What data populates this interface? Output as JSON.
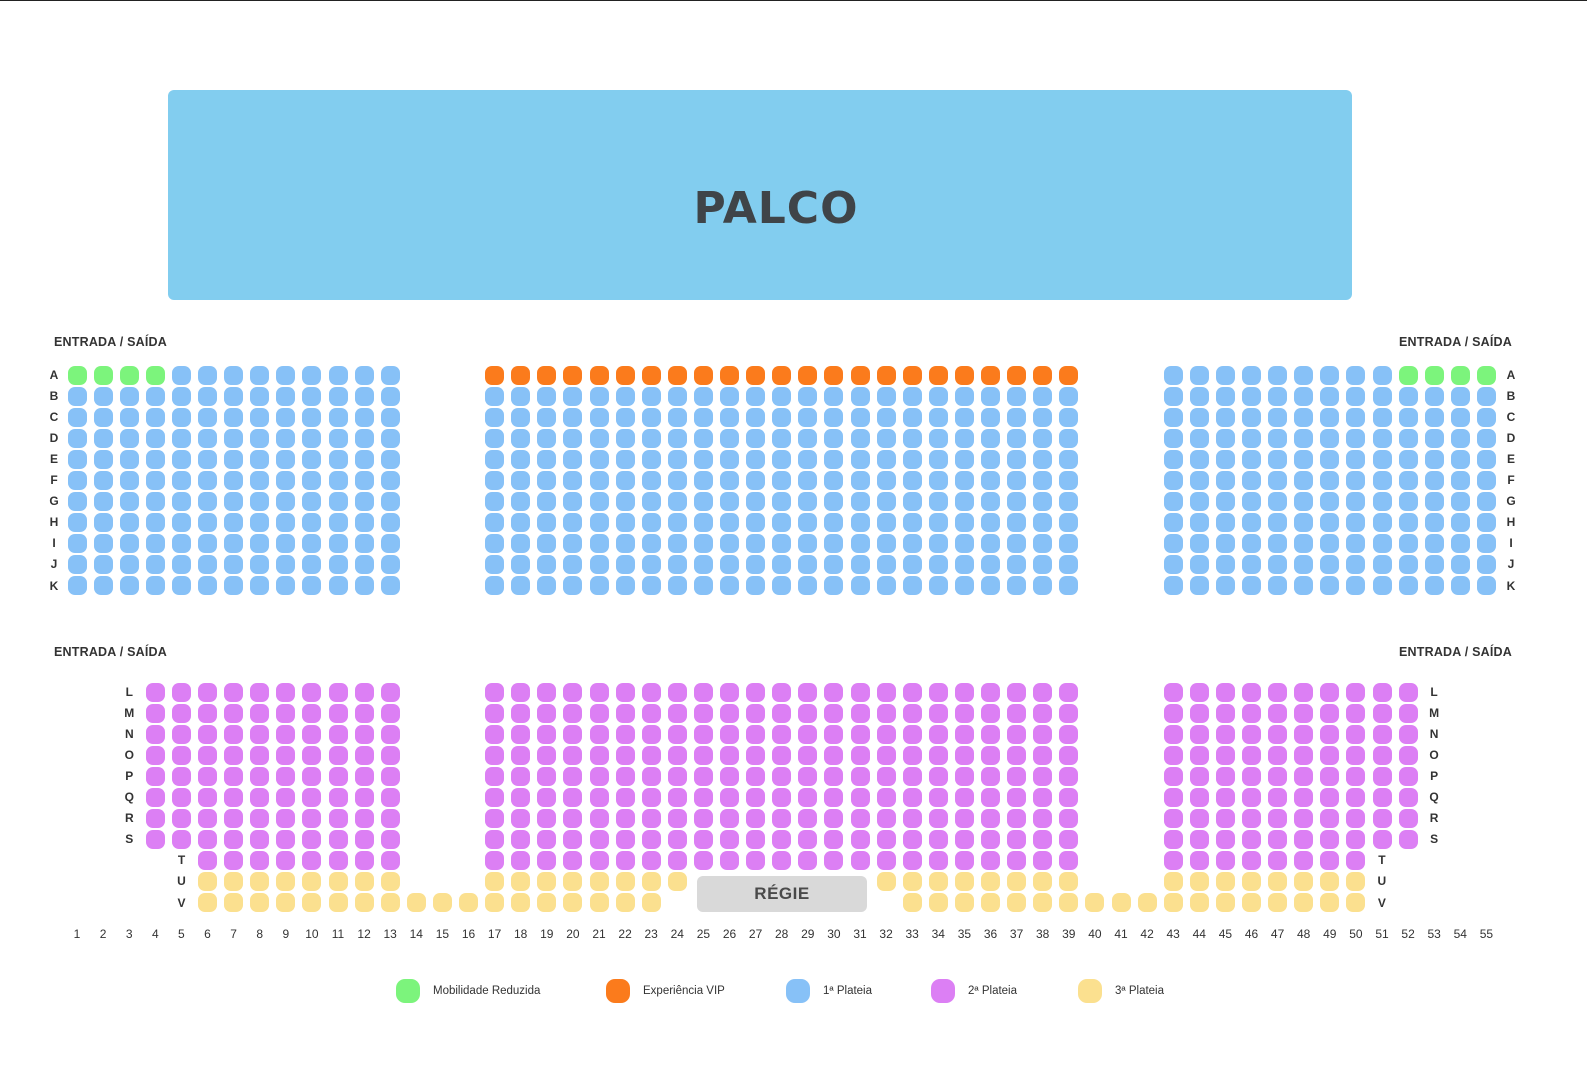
{
  "stage": {
    "label": "PALCO"
  },
  "exits": {
    "upper_left": "ENTRADA / SAÍDA",
    "upper_right": "ENTRADA / SAÍDA",
    "lower_left": "ENTRADA / SAÍDA",
    "lower_right": "ENTRADA / SAÍDA"
  },
  "regie": {
    "label": "RÉGIE"
  },
  "colors": {
    "mobility": "#7cf47c",
    "vip": "#fb7b1c",
    "plateia1": "#87c1f7",
    "plateia2": "#dc7ff4",
    "plateia3": "#fbe08f"
  },
  "legend": [
    {
      "key": "mobility",
      "label": "Mobilidade Reduzida"
    },
    {
      "key": "vip",
      "label": "Experiência VIP"
    },
    {
      "key": "plateia1",
      "label": "1ª Plateia"
    },
    {
      "key": "plateia2",
      "label": "2ª Plateia"
    },
    {
      "key": "plateia3",
      "label": "3ª Plateia"
    }
  ],
  "seat_columns": [
    "1",
    "2",
    "3",
    "4",
    "5",
    "6",
    "7",
    "8",
    "9",
    "10",
    "11",
    "12",
    "13",
    "14",
    "15",
    "16",
    "17",
    "18",
    "19",
    "20",
    "21",
    "22",
    "23",
    "24",
    "25",
    "26",
    "27",
    "28",
    "29",
    "30",
    "31",
    "32",
    "33",
    "34",
    "35",
    "36",
    "37",
    "38",
    "39",
    "40",
    "41",
    "42",
    "43",
    "44",
    "45",
    "46",
    "47",
    "48",
    "49",
    "50",
    "51",
    "52",
    "53",
    "54",
    "55"
  ],
  "seating": {
    "rows": [
      {
        "row": "A",
        "seats": [
          {
            "cols": [
              1,
              4
            ],
            "cat": "mobility"
          },
          {
            "cols": [
              5,
              13
            ],
            "cat": "plateia1"
          },
          {
            "cols": [
              17,
              39
            ],
            "cat": "vip"
          },
          {
            "cols": [
              43,
              51
            ],
            "cat": "plateia1"
          },
          {
            "cols": [
              52,
              55
            ],
            "cat": "mobility"
          }
        ]
      },
      {
        "row": "B",
        "seats": [
          {
            "cols": [
              1,
              13
            ],
            "cat": "plateia1"
          },
          {
            "cols": [
              17,
              39
            ],
            "cat": "plateia1"
          },
          {
            "cols": [
              43,
              55
            ],
            "cat": "plateia1"
          }
        ]
      },
      {
        "row": "C",
        "seats": [
          {
            "cols": [
              1,
              13
            ],
            "cat": "plateia1"
          },
          {
            "cols": [
              17,
              39
            ],
            "cat": "plateia1"
          },
          {
            "cols": [
              43,
              55
            ],
            "cat": "plateia1"
          }
        ]
      },
      {
        "row": "D",
        "seats": [
          {
            "cols": [
              1,
              13
            ],
            "cat": "plateia1"
          },
          {
            "cols": [
              17,
              39
            ],
            "cat": "plateia1"
          },
          {
            "cols": [
              43,
              55
            ],
            "cat": "plateia1"
          }
        ]
      },
      {
        "row": "E",
        "seats": [
          {
            "cols": [
              1,
              13
            ],
            "cat": "plateia1"
          },
          {
            "cols": [
              17,
              39
            ],
            "cat": "plateia1"
          },
          {
            "cols": [
              43,
              55
            ],
            "cat": "plateia1"
          }
        ]
      },
      {
        "row": "F",
        "seats": [
          {
            "cols": [
              1,
              13
            ],
            "cat": "plateia1"
          },
          {
            "cols": [
              17,
              39
            ],
            "cat": "plateia1"
          },
          {
            "cols": [
              43,
              55
            ],
            "cat": "plateia1"
          }
        ]
      },
      {
        "row": "G",
        "seats": [
          {
            "cols": [
              1,
              13
            ],
            "cat": "plateia1"
          },
          {
            "cols": [
              17,
              39
            ],
            "cat": "plateia1"
          },
          {
            "cols": [
              43,
              55
            ],
            "cat": "plateia1"
          }
        ]
      },
      {
        "row": "H",
        "seats": [
          {
            "cols": [
              1,
              13
            ],
            "cat": "plateia1"
          },
          {
            "cols": [
              17,
              39
            ],
            "cat": "plateia1"
          },
          {
            "cols": [
              43,
              55
            ],
            "cat": "plateia1"
          }
        ]
      },
      {
        "row": "I",
        "seats": [
          {
            "cols": [
              1,
              13
            ],
            "cat": "plateia1"
          },
          {
            "cols": [
              17,
              39
            ],
            "cat": "plateia1"
          },
          {
            "cols": [
              43,
              55
            ],
            "cat": "plateia1"
          }
        ]
      },
      {
        "row": "J",
        "seats": [
          {
            "cols": [
              1,
              13
            ],
            "cat": "plateia1"
          },
          {
            "cols": [
              17,
              39
            ],
            "cat": "plateia1"
          },
          {
            "cols": [
              43,
              55
            ],
            "cat": "plateia1"
          }
        ]
      },
      {
        "row": "K",
        "seats": [
          {
            "cols": [
              1,
              13
            ],
            "cat": "plateia1"
          },
          {
            "cols": [
              17,
              39
            ],
            "cat": "plateia1"
          },
          {
            "cols": [
              43,
              55
            ],
            "cat": "plateia1"
          }
        ]
      },
      {
        "row": "L",
        "seats": [
          {
            "cols": [
              4,
              13
            ],
            "cat": "plateia2"
          },
          {
            "cols": [
              17,
              39
            ],
            "cat": "plateia2"
          },
          {
            "cols": [
              43,
              52
            ],
            "cat": "plateia2"
          }
        ]
      },
      {
        "row": "M",
        "seats": [
          {
            "cols": [
              4,
              13
            ],
            "cat": "plateia2"
          },
          {
            "cols": [
              17,
              39
            ],
            "cat": "plateia2"
          },
          {
            "cols": [
              43,
              52
            ],
            "cat": "plateia2"
          }
        ]
      },
      {
        "row": "N",
        "seats": [
          {
            "cols": [
              4,
              13
            ],
            "cat": "plateia2"
          },
          {
            "cols": [
              17,
              39
            ],
            "cat": "plateia2"
          },
          {
            "cols": [
              43,
              52
            ],
            "cat": "plateia2"
          }
        ]
      },
      {
        "row": "O",
        "seats": [
          {
            "cols": [
              4,
              13
            ],
            "cat": "plateia2"
          },
          {
            "cols": [
              17,
              39
            ],
            "cat": "plateia2"
          },
          {
            "cols": [
              43,
              52
            ],
            "cat": "plateia2"
          }
        ]
      },
      {
        "row": "P",
        "seats": [
          {
            "cols": [
              4,
              13
            ],
            "cat": "plateia2"
          },
          {
            "cols": [
              17,
              39
            ],
            "cat": "plateia2"
          },
          {
            "cols": [
              43,
              52
            ],
            "cat": "plateia2"
          }
        ]
      },
      {
        "row": "Q",
        "seats": [
          {
            "cols": [
              4,
              13
            ],
            "cat": "plateia2"
          },
          {
            "cols": [
              17,
              39
            ],
            "cat": "plateia2"
          },
          {
            "cols": [
              43,
              52
            ],
            "cat": "plateia2"
          }
        ]
      },
      {
        "row": "R",
        "seats": [
          {
            "cols": [
              4,
              13
            ],
            "cat": "plateia2"
          },
          {
            "cols": [
              17,
              39
            ],
            "cat": "plateia2"
          },
          {
            "cols": [
              43,
              52
            ],
            "cat": "plateia2"
          }
        ]
      },
      {
        "row": "S",
        "seats": [
          {
            "cols": [
              4,
              13
            ],
            "cat": "plateia2"
          },
          {
            "cols": [
              17,
              39
            ],
            "cat": "plateia2"
          },
          {
            "cols": [
              43,
              52
            ],
            "cat": "plateia2"
          }
        ]
      },
      {
        "row": "T",
        "seats": [
          {
            "cols": [
              6,
              13
            ],
            "cat": "plateia2"
          },
          {
            "cols": [
              17,
              39
            ],
            "cat": "plateia2"
          },
          {
            "cols": [
              43,
              50
            ],
            "cat": "plateia2"
          }
        ]
      },
      {
        "row": "U",
        "seats": [
          {
            "cols": [
              6,
              13
            ],
            "cat": "plateia3"
          },
          {
            "cols": [
              17,
              24
            ],
            "cat": "plateia3"
          },
          {
            "cols": [
              32,
              39
            ],
            "cat": "plateia3"
          },
          {
            "cols": [
              43,
              50
            ],
            "cat": "plateia3"
          }
        ]
      },
      {
        "row": "V",
        "seats": [
          {
            "cols": [
              6,
              23
            ],
            "cat": "plateia3"
          },
          {
            "cols": [
              33,
              50
            ],
            "cat": "plateia3"
          }
        ]
      }
    ]
  }
}
